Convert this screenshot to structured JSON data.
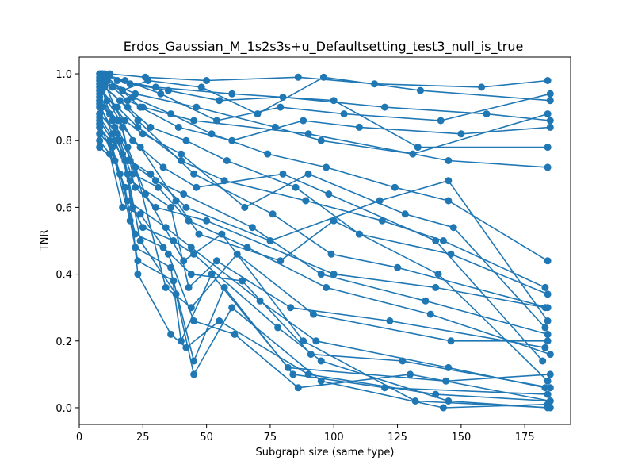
{
  "chart_data": {
    "type": "line",
    "title": "Erdos_Gaussian_M_1s2s3s+u_Defaultsetting_test3_null_is_true",
    "xlabel": "Subgraph size (same type)",
    "ylabel": "TNR",
    "xlim": [
      0,
      193
    ],
    "ylim": [
      -0.05,
      1.05
    ],
    "xticks": [
      0,
      25,
      50,
      75,
      100,
      125,
      150,
      175
    ],
    "yticks": [
      0.0,
      0.2,
      0.4,
      0.6,
      0.8,
      1.0
    ],
    "ytick_labels": [
      "0.0",
      "0.2",
      "0.4",
      "0.6",
      "0.8",
      "1.0"
    ],
    "grid": false,
    "marker": "circle",
    "color": "#1f77b4",
    "series": [
      {
        "values": [
          [
            8,
            1.0
          ],
          [
            13,
            0.96
          ],
          [
            19,
            0.92
          ],
          [
            25,
            0.9
          ],
          [
            45,
            0.86
          ],
          [
            90,
            0.82
          ],
          [
            145,
            0.74
          ],
          [
            184,
            0.72
          ]
        ]
      },
      {
        "values": [
          [
            8,
            0.98
          ],
          [
            12,
            0.88
          ],
          [
            17,
            0.76
          ],
          [
            21,
            0.6
          ],
          [
            25,
            0.54
          ],
          [
            37,
            0.5
          ],
          [
            45,
            0.46
          ],
          [
            78,
            0.24
          ],
          [
            95,
            0.14
          ],
          [
            145,
            0.02
          ],
          [
            184,
            0.0
          ]
        ]
      },
      {
        "values": [
          [
            8,
            0.94
          ],
          [
            14,
            0.84
          ],
          [
            19,
            0.7
          ],
          [
            23,
            0.4
          ],
          [
            36,
            0.22
          ],
          [
            42,
            0.18
          ],
          [
            55,
            0.26
          ],
          [
            90,
            0.1
          ],
          [
            140,
            0.04
          ],
          [
            185,
            0.02
          ]
        ]
      },
      {
        "values": [
          [
            9,
            1.0
          ],
          [
            15,
            0.98
          ],
          [
            30,
            0.96
          ],
          [
            60,
            0.94
          ],
          [
            100,
            0.92
          ],
          [
            133,
            0.78
          ],
          [
            184,
            0.78
          ]
        ]
      },
      {
        "values": [
          [
            8,
            0.9
          ],
          [
            16,
            0.8
          ],
          [
            22,
            0.66
          ],
          [
            30,
            0.6
          ],
          [
            50,
            0.56
          ],
          [
            100,
            0.4
          ],
          [
            140,
            0.36
          ],
          [
            183,
            0.3
          ]
        ]
      },
      {
        "values": [
          [
            8,
            0.86
          ],
          [
            18,
            0.74
          ],
          [
            24,
            0.5
          ],
          [
            38,
            0.34
          ],
          [
            45,
            0.1
          ],
          [
            60,
            0.3
          ],
          [
            95,
            0.08
          ],
          [
            143,
            0.0
          ],
          [
            184,
            0.01
          ]
        ]
      },
      {
        "values": [
          [
            10,
            1.0
          ],
          [
            20,
            0.97
          ],
          [
            35,
            0.95
          ],
          [
            55,
            0.92
          ],
          [
            80,
            0.93
          ],
          [
            120,
            0.9
          ],
          [
            160,
            0.88
          ],
          [
            185,
            0.86
          ]
        ]
      },
      {
        "values": [
          [
            8,
            0.96
          ],
          [
            11,
            0.92
          ],
          [
            16,
            0.86
          ],
          [
            20,
            0.74
          ],
          [
            28,
            0.7
          ],
          [
            42,
            0.6
          ],
          [
            75,
            0.5
          ],
          [
            118,
            0.62
          ],
          [
            145,
            0.68
          ],
          [
            184,
            0.26
          ]
        ]
      },
      {
        "values": [
          [
            9,
            0.99
          ],
          [
            14,
            0.9
          ],
          [
            21,
            0.8
          ],
          [
            33,
            0.72
          ],
          [
            46,
            0.66
          ],
          [
            80,
            0.7
          ],
          [
            98,
            0.64
          ],
          [
            140,
            0.5
          ],
          [
            182,
            0.14
          ]
        ]
      },
      {
        "values": [
          [
            8,
            0.92
          ],
          [
            13,
            0.86
          ],
          [
            19,
            0.78
          ],
          [
            26,
            0.64
          ],
          [
            41,
            0.44
          ],
          [
            56,
            0.52
          ],
          [
            88,
            0.2
          ],
          [
            132,
            0.02
          ],
          [
            185,
            0.0
          ]
        ]
      },
      {
        "values": [
          [
            8,
            0.88
          ],
          [
            15,
            0.82
          ],
          [
            22,
            0.72
          ],
          [
            34,
            0.36
          ],
          [
            44,
            0.3
          ],
          [
            62,
            0.46
          ],
          [
            92,
            0.28
          ],
          [
            146,
            0.2
          ],
          [
            184,
            0.2
          ]
        ]
      },
      {
        "values": [
          [
            10,
            0.97
          ],
          [
            17,
            0.95
          ],
          [
            27,
            0.98
          ],
          [
            48,
            0.96
          ],
          [
            70,
            0.88
          ],
          [
            96,
            0.99
          ],
          [
            134,
            0.95
          ],
          [
            185,
            0.92
          ]
        ]
      },
      {
        "values": [
          [
            8,
            0.84
          ],
          [
            12,
            0.8
          ],
          [
            20,
            0.56
          ],
          [
            23,
            0.44
          ],
          [
            37,
            0.38
          ],
          [
            45,
            0.14
          ],
          [
            57,
            0.36
          ],
          [
            84,
            0.1
          ],
          [
            120,
            0.06
          ],
          [
            184,
            0.04
          ]
        ]
      },
      {
        "values": [
          [
            9,
            0.95
          ],
          [
            18,
            0.86
          ],
          [
            25,
            0.82
          ],
          [
            40,
            0.76
          ],
          [
            65,
            0.6
          ],
          [
            90,
            0.7
          ],
          [
            128,
            0.58
          ],
          [
            147,
            0.54
          ],
          [
            183,
            0.24
          ]
        ]
      },
      {
        "values": [
          [
            8,
            0.78
          ],
          [
            14,
            0.74
          ],
          [
            18,
            0.66
          ],
          [
            22,
            0.48
          ],
          [
            36,
            0.42
          ],
          [
            40,
            0.2
          ],
          [
            52,
            0.4
          ],
          [
            82,
            0.12
          ],
          [
            144,
            0.08
          ],
          [
            185,
            0.1
          ]
        ]
      },
      {
        "values": [
          [
            11,
            0.99
          ],
          [
            24,
            0.9
          ],
          [
            39,
            0.84
          ],
          [
            60,
            0.8
          ],
          [
            88,
            0.86
          ],
          [
            110,
            0.84
          ],
          [
            150,
            0.82
          ],
          [
            185,
            0.84
          ]
        ]
      },
      {
        "values": [
          [
            8,
            0.97
          ],
          [
            16,
            0.92
          ],
          [
            23,
            0.86
          ],
          [
            45,
            0.7
          ],
          [
            76,
            0.58
          ],
          [
            99,
            0.46
          ],
          [
            125,
            0.42
          ],
          [
            184,
            0.3
          ]
        ]
      },
      {
        "values": [
          [
            8,
            0.82
          ],
          [
            13,
            0.78
          ],
          [
            19,
            0.62
          ],
          [
            34,
            0.54
          ],
          [
            44,
            0.48
          ],
          [
            71,
            0.32
          ],
          [
            93,
            0.2
          ],
          [
            145,
            0.12
          ],
          [
            183,
            0.06
          ]
        ]
      },
      {
        "values": [
          [
            12,
            1.0
          ],
          [
            26,
            0.99
          ],
          [
            50,
            0.98
          ],
          [
            86,
            0.99
          ],
          [
            116,
            0.97
          ],
          [
            158,
            0.96
          ],
          [
            184,
            0.98
          ]
        ]
      },
      {
        "values": [
          [
            8,
            0.93
          ],
          [
            17,
            0.84
          ],
          [
            21,
            0.7
          ],
          [
            31,
            0.66
          ],
          [
            43,
            0.56
          ],
          [
            66,
            0.48
          ],
          [
            97,
            0.36
          ],
          [
            138,
            0.28
          ],
          [
            185,
            0.16
          ]
        ]
      },
      {
        "values": [
          [
            9,
            0.9
          ],
          [
            15,
            0.86
          ],
          [
            24,
            0.78
          ],
          [
            38,
            0.62
          ],
          [
            47,
            0.52
          ],
          [
            79,
            0.44
          ],
          [
            100,
            0.56
          ],
          [
            141,
            0.4
          ],
          [
            184,
            0.08
          ]
        ]
      },
      {
        "values": [
          [
            8,
            0.99
          ],
          [
            22,
            0.94
          ],
          [
            46,
            0.9
          ],
          [
            77,
            0.84
          ],
          [
            95,
            0.8
          ],
          [
            131,
            0.76
          ],
          [
            184,
            0.88
          ]
        ]
      },
      {
        "values": [
          [
            8,
            0.8
          ],
          [
            12,
            0.76
          ],
          [
            17,
            0.6
          ],
          [
            24,
            0.58
          ],
          [
            35,
            0.46
          ],
          [
            45,
            0.26
          ],
          [
            61,
            0.22
          ],
          [
            86,
            0.06
          ],
          [
            130,
            0.1
          ],
          [
            185,
            0.02
          ]
        ]
      },
      {
        "values": [
          [
            10,
            0.96
          ],
          [
            19,
            0.9
          ],
          [
            28,
            0.84
          ],
          [
            42,
            0.8
          ],
          [
            58,
            0.74
          ],
          [
            85,
            0.66
          ],
          [
            110,
            0.52
          ],
          [
            146,
            0.46
          ],
          [
            184,
            0.34
          ]
        ]
      },
      {
        "values": [
          [
            8,
            0.87
          ],
          [
            14,
            0.8
          ],
          [
            20,
            0.68
          ],
          [
            36,
            0.6
          ],
          [
            43,
            0.36
          ],
          [
            54,
            0.44
          ],
          [
            83,
            0.3
          ],
          [
            122,
            0.26
          ],
          [
            183,
            0.18
          ]
        ]
      },
      {
        "values": [
          [
            9,
            1.0
          ],
          [
            18,
            0.98
          ],
          [
            32,
            0.94
          ],
          [
            54,
            0.86
          ],
          [
            79,
            0.9
          ],
          [
            104,
            0.88
          ],
          [
            142,
            0.86
          ],
          [
            185,
            0.94
          ]
        ]
      },
      {
        "values": [
          [
            8,
            0.91
          ],
          [
            13,
            0.82
          ],
          [
            19,
            0.74
          ],
          [
            30,
            0.68
          ],
          [
            41,
            0.64
          ],
          [
            68,
            0.54
          ],
          [
            95,
            0.4
          ],
          [
            136,
            0.32
          ],
          [
            184,
            0.22
          ]
        ]
      },
      {
        "values": [
          [
            8,
            0.85
          ],
          [
            16,
            0.7
          ],
          [
            22,
            0.52
          ],
          [
            33,
            0.48
          ],
          [
            44,
            0.4
          ],
          [
            64,
            0.38
          ],
          [
            91,
            0.16
          ],
          [
            127,
            0.14
          ],
          [
            185,
            0.06
          ]
        ]
      },
      {
        "values": [
          [
            11,
            0.98
          ],
          [
            21,
            0.93
          ],
          [
            36,
            0.88
          ],
          [
            52,
            0.82
          ],
          [
            74,
            0.76
          ],
          [
            97,
            0.72
          ],
          [
            124,
            0.66
          ],
          [
            145,
            0.62
          ],
          [
            184,
            0.44
          ]
        ]
      },
      {
        "values": [
          [
            8,
            0.95
          ],
          [
            15,
            0.9
          ],
          [
            23,
            0.84
          ],
          [
            40,
            0.74
          ],
          [
            57,
            0.68
          ],
          [
            89,
            0.62
          ],
          [
            119,
            0.56
          ],
          [
            143,
            0.5
          ],
          [
            183,
            0.36
          ]
        ]
      }
    ]
  }
}
